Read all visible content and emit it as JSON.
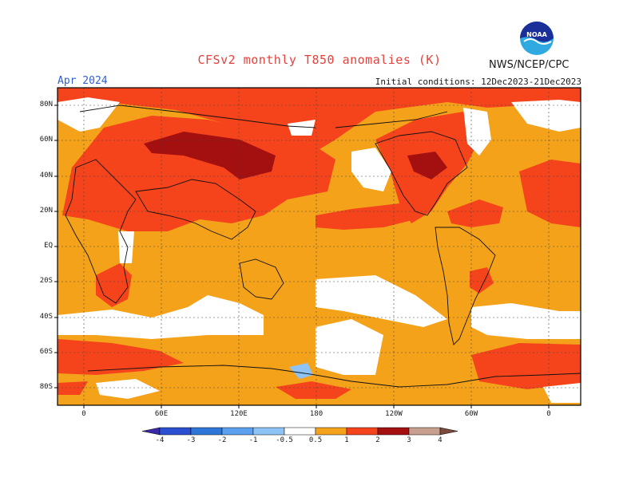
{
  "header": {
    "title": "CFSv2 monthly T850 anomalies (K)",
    "org": "NWS/NCEP/CPC",
    "valid_month": "Apr 2024",
    "init_conditions": "Initial conditions: 12Dec2023-21Dec2023"
  },
  "logo": {
    "icon": "noaa-logo-icon",
    "text": "NOAA"
  },
  "axes": {
    "lat_labels": [
      "80N",
      "60N",
      "40N",
      "20N",
      "EQ",
      "20S",
      "40S",
      "60S",
      "80S"
    ],
    "lon_labels": [
      "0",
      "60E",
      "120E",
      "180",
      "120W",
      "60W",
      "0"
    ]
  },
  "colorbar": {
    "levels": [
      "-4",
      "-3",
      "-2",
      "-1",
      "-0.5",
      "0.5",
      "1",
      "2",
      "3",
      "4"
    ],
    "colors": [
      "#3a2aa8",
      "#2a4fd0",
      "#2e77d8",
      "#5aa0ee",
      "#8ec4f5",
      "#ffffff",
      "#f5a21b",
      "#f5441c",
      "#a40f10",
      "#c79f8e",
      "#7a4a3c"
    ]
  },
  "map_colors": {
    "base": "#f5a21b",
    "warm": "#f5441c",
    "hot": "#a40f10",
    "neutral": "#ffffff",
    "cool": "#8ec4f5"
  }
}
